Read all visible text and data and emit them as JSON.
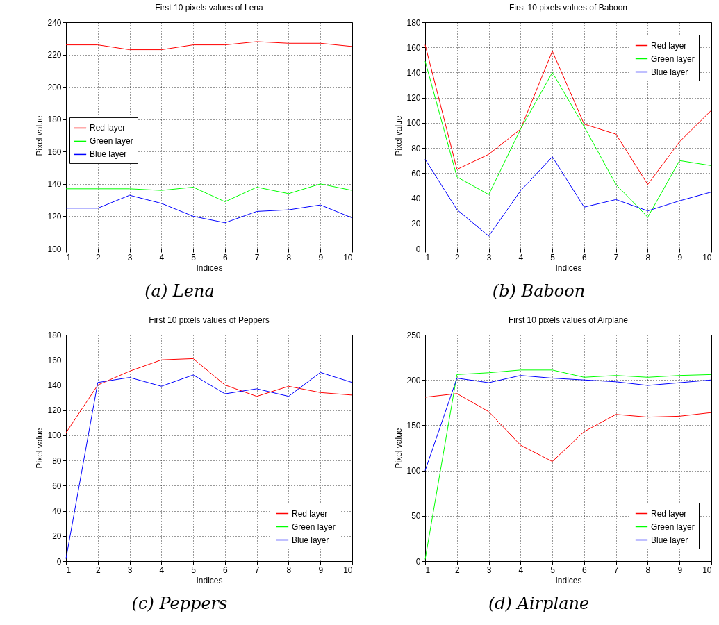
{
  "chart_data": [
    {
      "type": "line",
      "title": "First 10 pixels values of Lena",
      "xlabel": "Indices",
      "ylabel": "Pixel value",
      "annotations": [
        "(a) Lena"
      ],
      "x": [
        1,
        2,
        3,
        4,
        5,
        6,
        7,
        8,
        9,
        10
      ],
      "xlim": [
        1,
        10
      ],
      "xticks": [
        1,
        2,
        3,
        4,
        5,
        6,
        7,
        8,
        9,
        10
      ],
      "ylim": [
        100,
        240
      ],
      "yticks": [
        100,
        120,
        140,
        160,
        180,
        200,
        220,
        240
      ],
      "grid": true,
      "legend": "left",
      "line_style": "solid",
      "series": [
        {
          "name": "Red layer",
          "color": "#ff0000",
          "values": [
            226,
            226,
            223,
            223,
            226,
            226,
            228,
            227,
            227,
            225
          ]
        },
        {
          "name": "Green layer",
          "color": "#00ff00",
          "values": [
            137,
            137,
            137,
            136,
            138,
            129,
            138,
            134,
            140,
            136
          ]
        },
        {
          "name": "Blue layer",
          "color": "#0000ff",
          "values": [
            125,
            125,
            133,
            128,
            120,
            116,
            123,
            124,
            127,
            119
          ]
        }
      ]
    },
    {
      "type": "line",
      "title": "First 10 pixels values of Baboon",
      "xlabel": "Indices",
      "ylabel": "Pixel value",
      "annotations": [
        "(b) Baboon"
      ],
      "x": [
        1,
        2,
        3,
        4,
        5,
        6,
        7,
        8,
        9,
        10
      ],
      "xlim": [
        1,
        10
      ],
      "xticks": [
        1,
        2,
        3,
        4,
        5,
        6,
        7,
        8,
        9,
        10
      ],
      "ylim": [
        0,
        180
      ],
      "yticks": [
        0,
        20,
        40,
        60,
        80,
        100,
        120,
        140,
        160,
        180
      ],
      "grid": true,
      "legend": "top right",
      "line_style": "solid",
      "series": [
        {
          "name": "Red layer",
          "color": "#ff0000",
          "values": [
            162,
            63,
            75,
            95,
            157,
            99,
            91,
            51,
            85,
            110
          ]
        },
        {
          "name": "Green layer",
          "color": "#00ff00",
          "values": [
            149,
            57,
            43,
            95,
            140,
            97,
            51,
            25,
            70,
            66
          ]
        },
        {
          "name": "Blue layer",
          "color": "#0000ff",
          "values": [
            71,
            31,
            10,
            46,
            73,
            33,
            39,
            30,
            38,
            45
          ]
        }
      ]
    },
    {
      "type": "line",
      "title": "First 10 pixels values of Peppers",
      "xlabel": "Indices",
      "ylabel": "Pixel value",
      "annotations": [
        "(c) Peppers"
      ],
      "x": [
        1,
        2,
        3,
        4,
        5,
        6,
        7,
        8,
        9,
        10
      ],
      "xlim": [
        1,
        10
      ],
      "xticks": [
        1,
        2,
        3,
        4,
        5,
        6,
        7,
        8,
        9,
        10
      ],
      "ylim": [
        0,
        180
      ],
      "yticks": [
        0,
        20,
        40,
        60,
        80,
        100,
        120,
        140,
        160,
        180
      ],
      "grid": true,
      "legend": "bottom right",
      "line_style": "solid",
      "series": [
        {
          "name": "Red layer",
          "color": "#ff0000",
          "values": [
            102,
            140,
            151,
            160,
            161,
            140,
            131,
            139,
            134,
            132
          ]
        },
        {
          "name": "Green layer",
          "color": "#00ff00",
          "values": [
            null,
            null,
            null,
            null,
            null,
            null,
            null,
            null,
            null,
            null
          ]
        },
        {
          "name": "Blue layer",
          "color": "#0000ff",
          "values": [
            2,
            142,
            146,
            139,
            148,
            133,
            137,
            131,
            150,
            142
          ]
        }
      ]
    },
    {
      "type": "line",
      "title": "First 10 pixels values of Airplane",
      "xlabel": "Indices",
      "ylabel": "Pixel value",
      "annotations": [
        "(d) Airplane"
      ],
      "x": [
        1,
        2,
        3,
        4,
        5,
        6,
        7,
        8,
        9,
        10
      ],
      "xlim": [
        1,
        10
      ],
      "xticks": [
        1,
        2,
        3,
        4,
        5,
        6,
        7,
        8,
        9,
        10
      ],
      "ylim": [
        0,
        250
      ],
      "yticks": [
        0,
        50,
        100,
        150,
        200,
        250
      ],
      "grid": true,
      "legend": "bottom right",
      "line_style": "solid",
      "series": [
        {
          "name": "Red layer",
          "color": "#ff0000",
          "values": [
            181,
            185,
            165,
            128,
            110,
            143,
            162,
            159,
            160,
            164
          ]
        },
        {
          "name": "Green layer",
          "color": "#00ff00",
          "values": [
            2,
            206,
            208,
            211,
            211,
            203,
            205,
            203,
            205,
            206
          ]
        },
        {
          "name": "Blue layer",
          "color": "#0000ff",
          "values": [
            100,
            202,
            197,
            205,
            202,
            200,
            198,
            194,
            197,
            200
          ]
        }
      ]
    }
  ]
}
